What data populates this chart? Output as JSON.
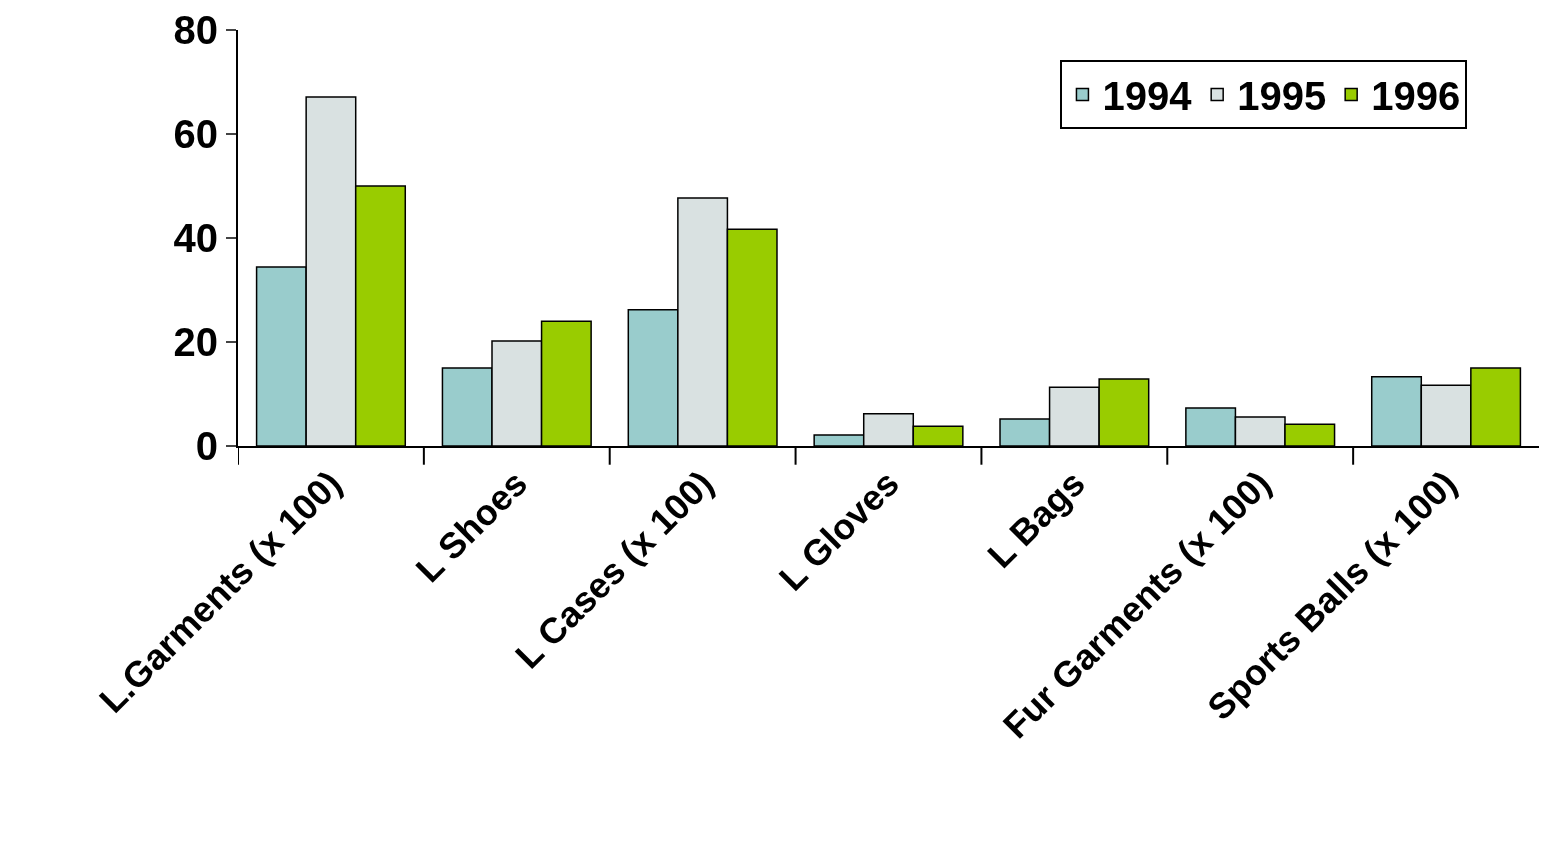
{
  "chart_data": {
    "type": "bar",
    "categories": [
      "L.Garments (x 100)",
      "L Shoes",
      "L Cases (x 100)",
      "L Gloves",
      "L Bags",
      "Fur Garments (x 100)",
      "Sports Balls (x 100)"
    ],
    "series": [
      {
        "name": "1994",
        "color": "#99cccc",
        "values": [
          34.4,
          15,
          26.2,
          2.1,
          5.2,
          7.3,
          13.3
        ]
      },
      {
        "name": "1995",
        "color": "#d9e1e1",
        "values": [
          67.1,
          20.2,
          47.7,
          6.2,
          11.3,
          5.6,
          11.7
        ]
      },
      {
        "name": "1996",
        "color": "#99cc00",
        "values": [
          50,
          24,
          41.7,
          3.8,
          12.9,
          4.2,
          15
        ]
      }
    ],
    "ylim": [
      0,
      80
    ],
    "yticks": [
      0,
      20,
      40,
      60,
      80
    ],
    "legend": "top right"
  }
}
